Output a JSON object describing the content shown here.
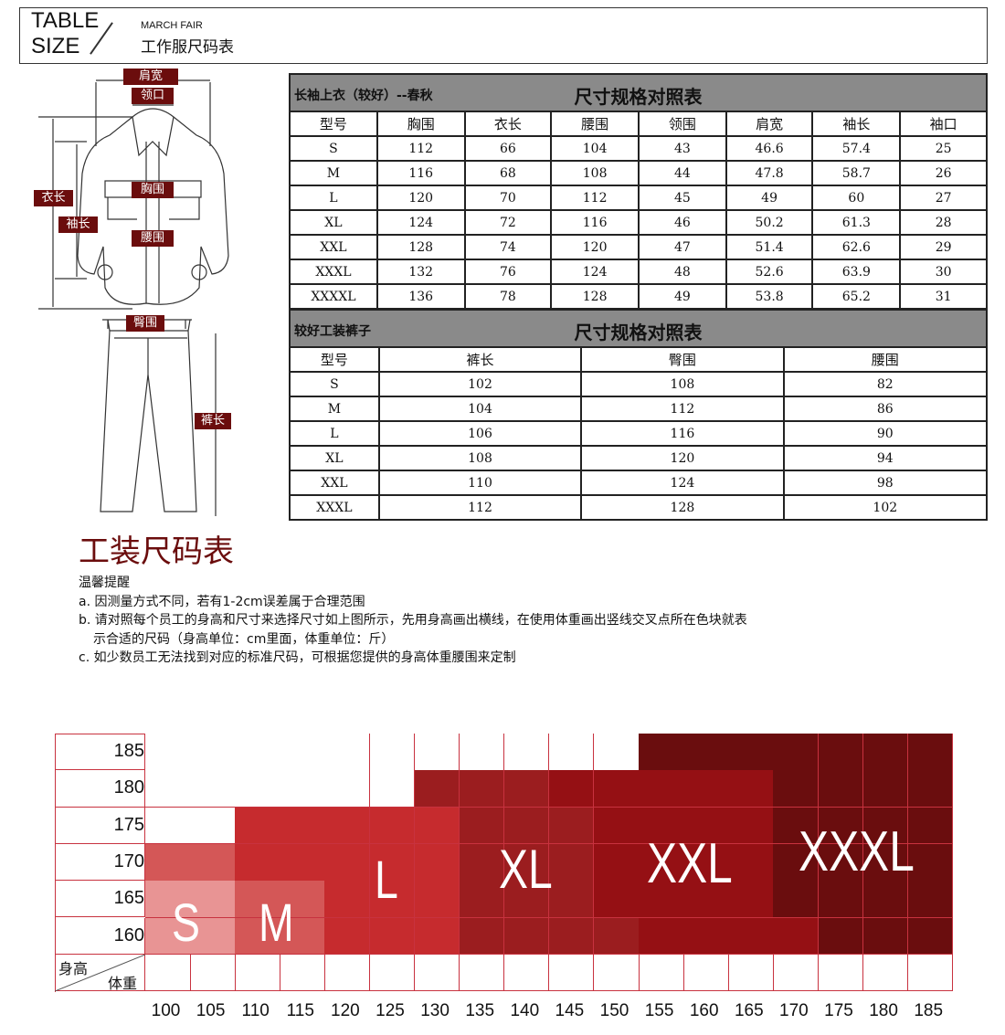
{
  "header": {
    "title_line1": "TABLE",
    "title_line2": "SIZE",
    "brand": "MARCH FAIR",
    "subtitle": "工作服尺码表"
  },
  "garment_labels": {
    "shoulder": "肩宽",
    "collar": "领口",
    "length": "衣长",
    "sleeve": "袖长",
    "chest": "胸围",
    "waist": "腰围",
    "hip": "臀围",
    "pants_length": "裤长"
  },
  "top_table": {
    "subtitle": "长袖上衣（较好）--春秋",
    "title": "尺寸规格对照表",
    "columns": [
      "型号",
      "胸围",
      "衣长",
      "腰围",
      "领围",
      "肩宽",
      "袖长",
      "袖口"
    ],
    "rows": [
      [
        "S",
        "112",
        "66",
        "104",
        "43",
        "46.6",
        "57.4",
        "25"
      ],
      [
        "M",
        "116",
        "68",
        "108",
        "44",
        "47.8",
        "58.7",
        "26"
      ],
      [
        "L",
        "120",
        "70",
        "112",
        "45",
        "49",
        "60",
        "27"
      ],
      [
        "XL",
        "124",
        "72",
        "116",
        "46",
        "50.2",
        "61.3",
        "28"
      ],
      [
        "XXL",
        "128",
        "74",
        "120",
        "47",
        "51.4",
        "62.6",
        "29"
      ],
      [
        "XXXL",
        "132",
        "76",
        "124",
        "48",
        "52.6",
        "63.9",
        "30"
      ],
      [
        "XXXXL",
        "136",
        "78",
        "128",
        "49",
        "53.8",
        "65.2",
        "31"
      ]
    ]
  },
  "pants_table": {
    "subtitle": "较好工装裤子",
    "title": "尺寸规格对照表",
    "columns": [
      "型号",
      "裤长",
      "臀围",
      "腰围"
    ],
    "rows": [
      [
        "S",
        "102",
        "108",
        "82"
      ],
      [
        "M",
        "104",
        "112",
        "86"
      ],
      [
        "L",
        "106",
        "116",
        "90"
      ],
      [
        "XL",
        "108",
        "120",
        "94"
      ],
      [
        "XXL",
        "110",
        "124",
        "98"
      ],
      [
        "XXXL",
        "112",
        "128",
        "102"
      ]
    ]
  },
  "notes": {
    "title": "工装尺码表",
    "heading": "温馨提醒",
    "a": "a. 因测量方式不同，若有1-2cm误差属于合理范围",
    "b1": "b. 请对照每个员工的身高和尺寸来选择尺寸如上图所示，先用身高画出横线，在使用体重画出竖线交叉点所在色块就表",
    "b2": "示合适的尺码（身高单位：cm里面，体重单位：斤）",
    "c": "c. 如少数员工无法找到对应的标准尺码，可根据您提供的身高体重腰围来定制"
  },
  "chart_data": {
    "type": "heatmap",
    "corner_y_label": "身高",
    "corner_x_label": "体重",
    "x": [
      "100",
      "105",
      "110",
      "115",
      "120",
      "125",
      "130",
      "135",
      "140",
      "145",
      "150",
      "155",
      "160",
      "165",
      "170",
      "175",
      "180",
      "185"
    ],
    "y": [
      "185",
      "180",
      "175",
      "170",
      "165",
      "160"
    ],
    "cells": [
      [
        "",
        "",
        "",
        "",
        "",
        "",
        "",
        "",
        "",
        "",
        "",
        "XXXL",
        "XXXL",
        "XXXL",
        "XXXL",
        "XXXL",
        "XXXL",
        "XXXL"
      ],
      [
        "",
        "",
        "",
        "",
        "",
        "",
        "XL",
        "XL",
        "XL",
        "XXL",
        "XXL",
        "XXL",
        "XXL",
        "XXL",
        "XXXL",
        "XXXL",
        "XXXL",
        "XXXL"
      ],
      [
        "",
        "",
        "L",
        "L",
        "L",
        "L",
        "L",
        "XL",
        "XL",
        "XL",
        "XXL",
        "XXL",
        "XXL",
        "XXL",
        "XXXL",
        "XXXL",
        "XXXL",
        "XXXL"
      ],
      [
        "M",
        "M",
        "L",
        "L",
        "L",
        "L",
        "L",
        "XL",
        "XL",
        "XL",
        "XXL",
        "XXL",
        "XXL",
        "XXL",
        "XXXL",
        "XXXL",
        "XXXL",
        "XXXL"
      ],
      [
        "S",
        "S",
        "M",
        "M",
        "L",
        "L",
        "L",
        "XL",
        "XL",
        "XL",
        "XXL",
        "XXL",
        "XXL",
        "XXL",
        "XXXL",
        "XXXL",
        "XXXL",
        "XXXL"
      ],
      [
        "S",
        "S",
        "M",
        "M",
        "L",
        "L",
        "L",
        "XL",
        "XL",
        "XL",
        "XL",
        "XXL",
        "XXL",
        "XXL",
        "XXL",
        "XXXL",
        "XXXL",
        "XXXL"
      ]
    ],
    "size_labels": [
      "S",
      "M",
      "L",
      "XL",
      "XXL",
      "XXXL"
    ],
    "colors": {
      "S": "#e89494",
      "M": "#d45757",
      "L": "#c62b2e",
      "XL": "#9b1d1f",
      "XXL": "#951014",
      "XXXL": "#6a0d0e",
      "": "#ffffff"
    },
    "grid": true
  }
}
